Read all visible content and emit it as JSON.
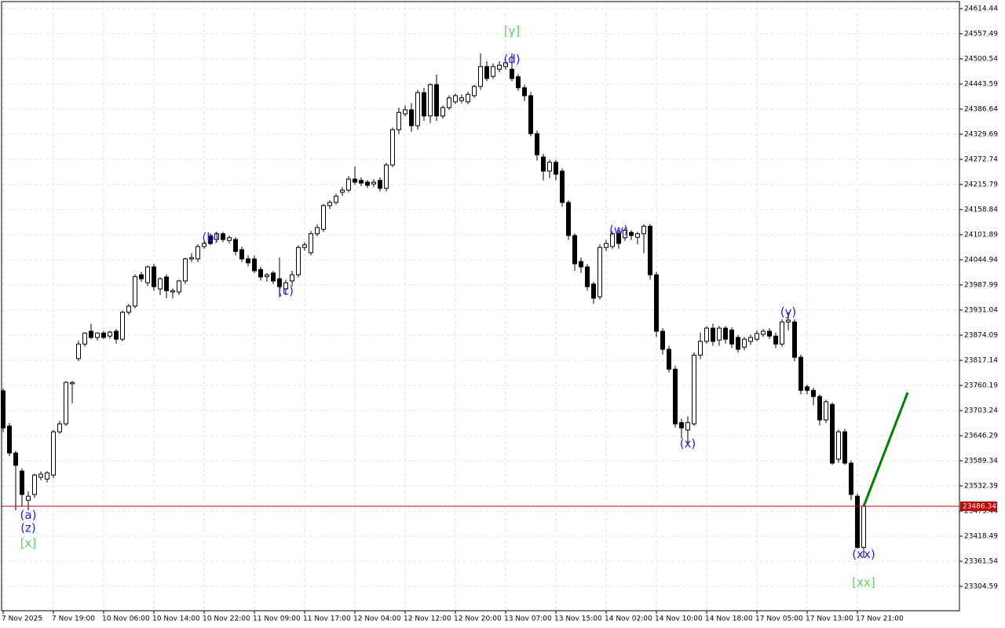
{
  "chart_data": {
    "type": "candlestick",
    "categories": [
      "7 Nov 2025",
      null,
      null,
      null,
      null,
      null,
      null,
      null,
      "7 Nov 19:00",
      null,
      null,
      null,
      null,
      null,
      null,
      null,
      "10 Nov 06:00",
      null,
      null,
      null,
      null,
      null,
      null,
      null,
      "10 Nov 14:00",
      null,
      null,
      null,
      null,
      null,
      null,
      null,
      "10 Nov 22:00",
      null,
      null,
      null,
      null,
      null,
      null,
      null,
      "11 Nov 09:00",
      null,
      null,
      null,
      null,
      null,
      null,
      null,
      "11 Nov 17:00",
      null,
      null,
      null,
      null,
      null,
      null,
      null,
      "12 Nov 04:00",
      null,
      null,
      null,
      null,
      null,
      null,
      null,
      "12 Nov 12:00",
      null,
      null,
      null,
      null,
      null,
      null,
      null,
      "12 Nov 20:00",
      null,
      null,
      null,
      null,
      null,
      null,
      null,
      "13 Nov 07:00",
      null,
      null,
      null,
      null,
      null,
      null,
      null,
      "13 Nov 15:00",
      null,
      null,
      null,
      null,
      null,
      null,
      null,
      "14 Nov 02:00",
      null,
      null,
      null,
      null,
      null,
      null,
      null,
      "14 Nov 10:00",
      null,
      null,
      null,
      null,
      null,
      null,
      null,
      "14 Nov 18:00",
      null,
      null,
      null,
      null,
      null,
      null,
      null,
      "17 Nov 05:00",
      null,
      null,
      null,
      null,
      null,
      null,
      null,
      "17 Nov 13:00",
      null,
      null,
      null,
      null,
      null,
      null,
      null,
      "17 Nov 21:00",
      null
    ],
    "open": [
      23748,
      23668,
      23607,
      23566,
      23500,
      23513,
      23552,
      23548,
      23557,
      23655,
      23673,
      23764,
      23821,
      23854,
      23883,
      23869,
      23879,
      23872,
      23883,
      23865,
      23926,
      23940,
      24011,
      23993,
      24029,
      23979,
      24006,
      23972,
      23972,
      23997,
      24047,
      24047,
      24075,
      24098,
      24091,
      24104,
      24089,
      24091,
      24068,
      24047,
      24047,
      24023,
      24007,
      24015,
      24002,
      23979,
      23997,
      24011,
      24073,
      24061,
      24104,
      24114,
      24168,
      24175,
      24198,
      24203,
      24228,
      24225,
      24221,
      24217,
      24225,
      24207,
      24260,
      24340,
      24376,
      24385,
      24349,
      24424,
      24371,
      24442,
      24371,
      24390,
      24403,
      24406,
      24403,
      24417,
      24438,
      24483,
      24461,
      24477,
      24483,
      24477,
      24460,
      24435,
      24417,
      24331,
      24278,
      24246,
      24266,
      24246,
      24175,
      24100,
      24041,
      24029,
      23990,
      23961,
      24073,
      24075,
      24105,
      24095,
      24107,
      24096,
      24104,
      24121,
      24011,
      23883,
      23842,
      23797,
      23676,
      23659,
      23673,
      23829,
      23860,
      23890,
      23863,
      23890,
      23886,
      23869,
      23847,
      23860,
      23865,
      23876,
      23883,
      23872,
      23854,
      23904,
      23904,
      23824,
      23757,
      23749,
      23735,
      23682,
      23717,
      23593,
      23655,
      23584,
      23509,
      23393
    ],
    "high": [
      23753,
      23675,
      23612,
      23572,
      23520,
      23560,
      23565,
      23566,
      23660,
      23680,
      23770,
      23770,
      23862,
      23880,
      23900,
      23880,
      23884,
      23884,
      23888,
      23930,
      23945,
      24012,
      24018,
      24032,
      24036,
      24005,
      24012,
      23980,
      24000,
      24050,
      24060,
      24080,
      24090,
      24105,
      24108,
      24108,
      24100,
      24096,
      24075,
      24055,
      24055,
      24030,
      24015,
      24020,
      24050,
      24000,
      24020,
      24078,
      24085,
      24110,
      24125,
      24172,
      24180,
      24195,
      24210,
      24235,
      24257,
      24232,
      24226,
      24228,
      24232,
      24265,
      24345,
      24390,
      24395,
      24400,
      24430,
      24435,
      24445,
      24465,
      24395,
      24418,
      24422,
      24420,
      24426,
      24442,
      24513,
      24495,
      24490,
      24495,
      24500,
      24513,
      24466,
      24442,
      24425,
      24338,
      24285,
      24272,
      24272,
      24252,
      24180,
      24105,
      24050,
      24035,
      23995,
      24080,
      24090,
      24110,
      24112,
      24118,
      24112,
      24108,
      24125,
      24126,
      24018,
      23890,
      23850,
      23805,
      23685,
      23690,
      23835,
      23880,
      23895,
      23900,
      23895,
      23895,
      23892,
      23875,
      23870,
      23875,
      23885,
      23888,
      23890,
      23880,
      23910,
      23926,
      23910,
      23830,
      23762,
      23755,
      23740,
      23728,
      23722,
      23660,
      23662,
      23590,
      23515,
      23490
    ],
    "low": [
      23655,
      23600,
      23477,
      23485,
      23477,
      23505,
      23545,
      23540,
      23550,
      23650,
      23668,
      23720,
      23815,
      23848,
      23865,
      23862,
      23865,
      23866,
      23855,
      23860,
      23920,
      23935,
      23995,
      23985,
      23975,
      23965,
      23958,
      23958,
      23965,
      23990,
      24040,
      24040,
      24070,
      24078,
      24085,
      24085,
      24082,
      24055,
      24040,
      24030,
      24015,
      23998,
      23995,
      23990,
      23960,
      23965,
      23985,
      24005,
      24066,
      24055,
      24098,
      24108,
      24160,
      24170,
      24190,
      24198,
      24215,
      24212,
      24208,
      24210,
      24200,
      24200,
      24255,
      24330,
      24370,
      24335,
      24340,
      24360,
      24355,
      24360,
      24365,
      24385,
      24398,
      24400,
      24398,
      24412,
      24430,
      24450,
      24455,
      24470,
      24476,
      24450,
      24428,
      24405,
      24325,
      24270,
      24225,
      24230,
      24225,
      24165,
      24090,
      24020,
      24015,
      23975,
      23945,
      23955,
      24065,
      24070,
      24070,
      24088,
      24090,
      24080,
      24060,
      24000,
      23870,
      23830,
      23790,
      23665,
      23640,
      23630,
      23668,
      23820,
      23855,
      23850,
      23850,
      23855,
      23845,
      23835,
      23840,
      23852,
      23860,
      23870,
      23865,
      23845,
      23848,
      23885,
      23815,
      23740,
      23740,
      23715,
      23670,
      23675,
      23580,
      23585,
      23580,
      23500,
      23390,
      23370
    ],
    "close": [
      23664,
      23607,
      23579,
      23513,
      23509,
      23557,
      23559,
      23562,
      23655,
      23673,
      23767,
      23767,
      23854,
      23879,
      23869,
      23879,
      23869,
      23881,
      23865,
      23926,
      23940,
      24007,
      24002,
      24029,
      23984,
      24002,
      23975,
      23975,
      23997,
      24047,
      24050,
      24075,
      24082,
      24082,
      24104,
      24091,
      24095,
      24064,
      24047,
      24038,
      24020,
      24006,
      24011,
      23997,
      23984,
      23993,
      24011,
      24073,
      24079,
      24104,
      24118,
      24168,
      24175,
      24189,
      24203,
      24228,
      24221,
      24219,
      24214,
      24221,
      24207,
      24260,
      24340,
      24379,
      24385,
      24349,
      24424,
      24371,
      24442,
      24371,
      24390,
      24412,
      24417,
      24412,
      24420,
      24438,
      24483,
      24456,
      24483,
      24486,
      24492,
      24456,
      24435,
      24417,
      24331,
      24283,
      24246,
      24266,
      24239,
      24175,
      24100,
      24036,
      24029,
      23984,
      23958,
      24073,
      24082,
      24104,
      24082,
      24112,
      24100,
      24104,
      24121,
      24011,
      23883,
      23842,
      23797,
      23673,
      23664,
      23676,
      23829,
      23860,
      23890,
      23860,
      23890,
      23865,
      23854,
      23842,
      23865,
      23869,
      23878,
      23883,
      23872,
      23854,
      23904,
      23908,
      23824,
      23749,
      23749,
      23735,
      23682,
      23723,
      23584,
      23655,
      23584,
      23513,
      23393,
      23486
    ],
    "up_color": "#ffffff",
    "down_color": "#000000",
    "ylim": [
      23249.4,
      24630.4
    ],
    "yticks": [
      24614.44,
      24557.49,
      24500.54,
      24443.59,
      24386.64,
      24329.69,
      24272.74,
      24215.79,
      24158.84,
      24101.89,
      24044.94,
      23987.99,
      23931.04,
      23874.09,
      23817.14,
      23760.19,
      23703.24,
      23646.29,
      23589.34,
      23532.39,
      23475.44,
      23418.49,
      23361.54,
      23304.59
    ],
    "grid": true,
    "price_line": 23486.34,
    "price_line_color": "#cc0000",
    "projection": {
      "color": "#008000",
      "x": [
        137,
        144
      ],
      "values": [
        23486,
        23744
      ]
    },
    "annotations": [
      {
        "text": "(a)",
        "index": 4,
        "price": 23466,
        "color": "#1e1eff"
      },
      {
        "text": "(z)",
        "index": 4,
        "price": 23436,
        "color": "#1e1eff"
      },
      {
        "text": "[x]",
        "index": 4,
        "price": 23402,
        "color": "#5fd35f"
      },
      {
        "text": "(b)",
        "index": 33,
        "price": 24095,
        "color": "#1e1eff"
      },
      {
        "text": "(c)",
        "index": 45,
        "price": 23974,
        "color": "#1e1eff"
      },
      {
        "text": "[y]",
        "index": 81,
        "price": 24563,
        "color": "#5fd35f"
      },
      {
        "text": "(d)",
        "index": 81,
        "price": 24499,
        "color": "#1e1eff"
      },
      {
        "text": "(w)",
        "index": 98,
        "price": 24112,
        "color": "#1e1eff"
      },
      {
        "text": "(x)",
        "index": 109,
        "price": 23628,
        "color": "#1e1eff"
      },
      {
        "text": "(y)",
        "index": 125,
        "price": 23926,
        "color": "#1e1eff"
      },
      {
        "text": "(xx)",
        "index": 137,
        "price": 23377,
        "color": "#1e1eff"
      },
      {
        "text": "[xx]",
        "index": 137,
        "price": 23313,
        "color": "#5fd35f"
      }
    ]
  }
}
